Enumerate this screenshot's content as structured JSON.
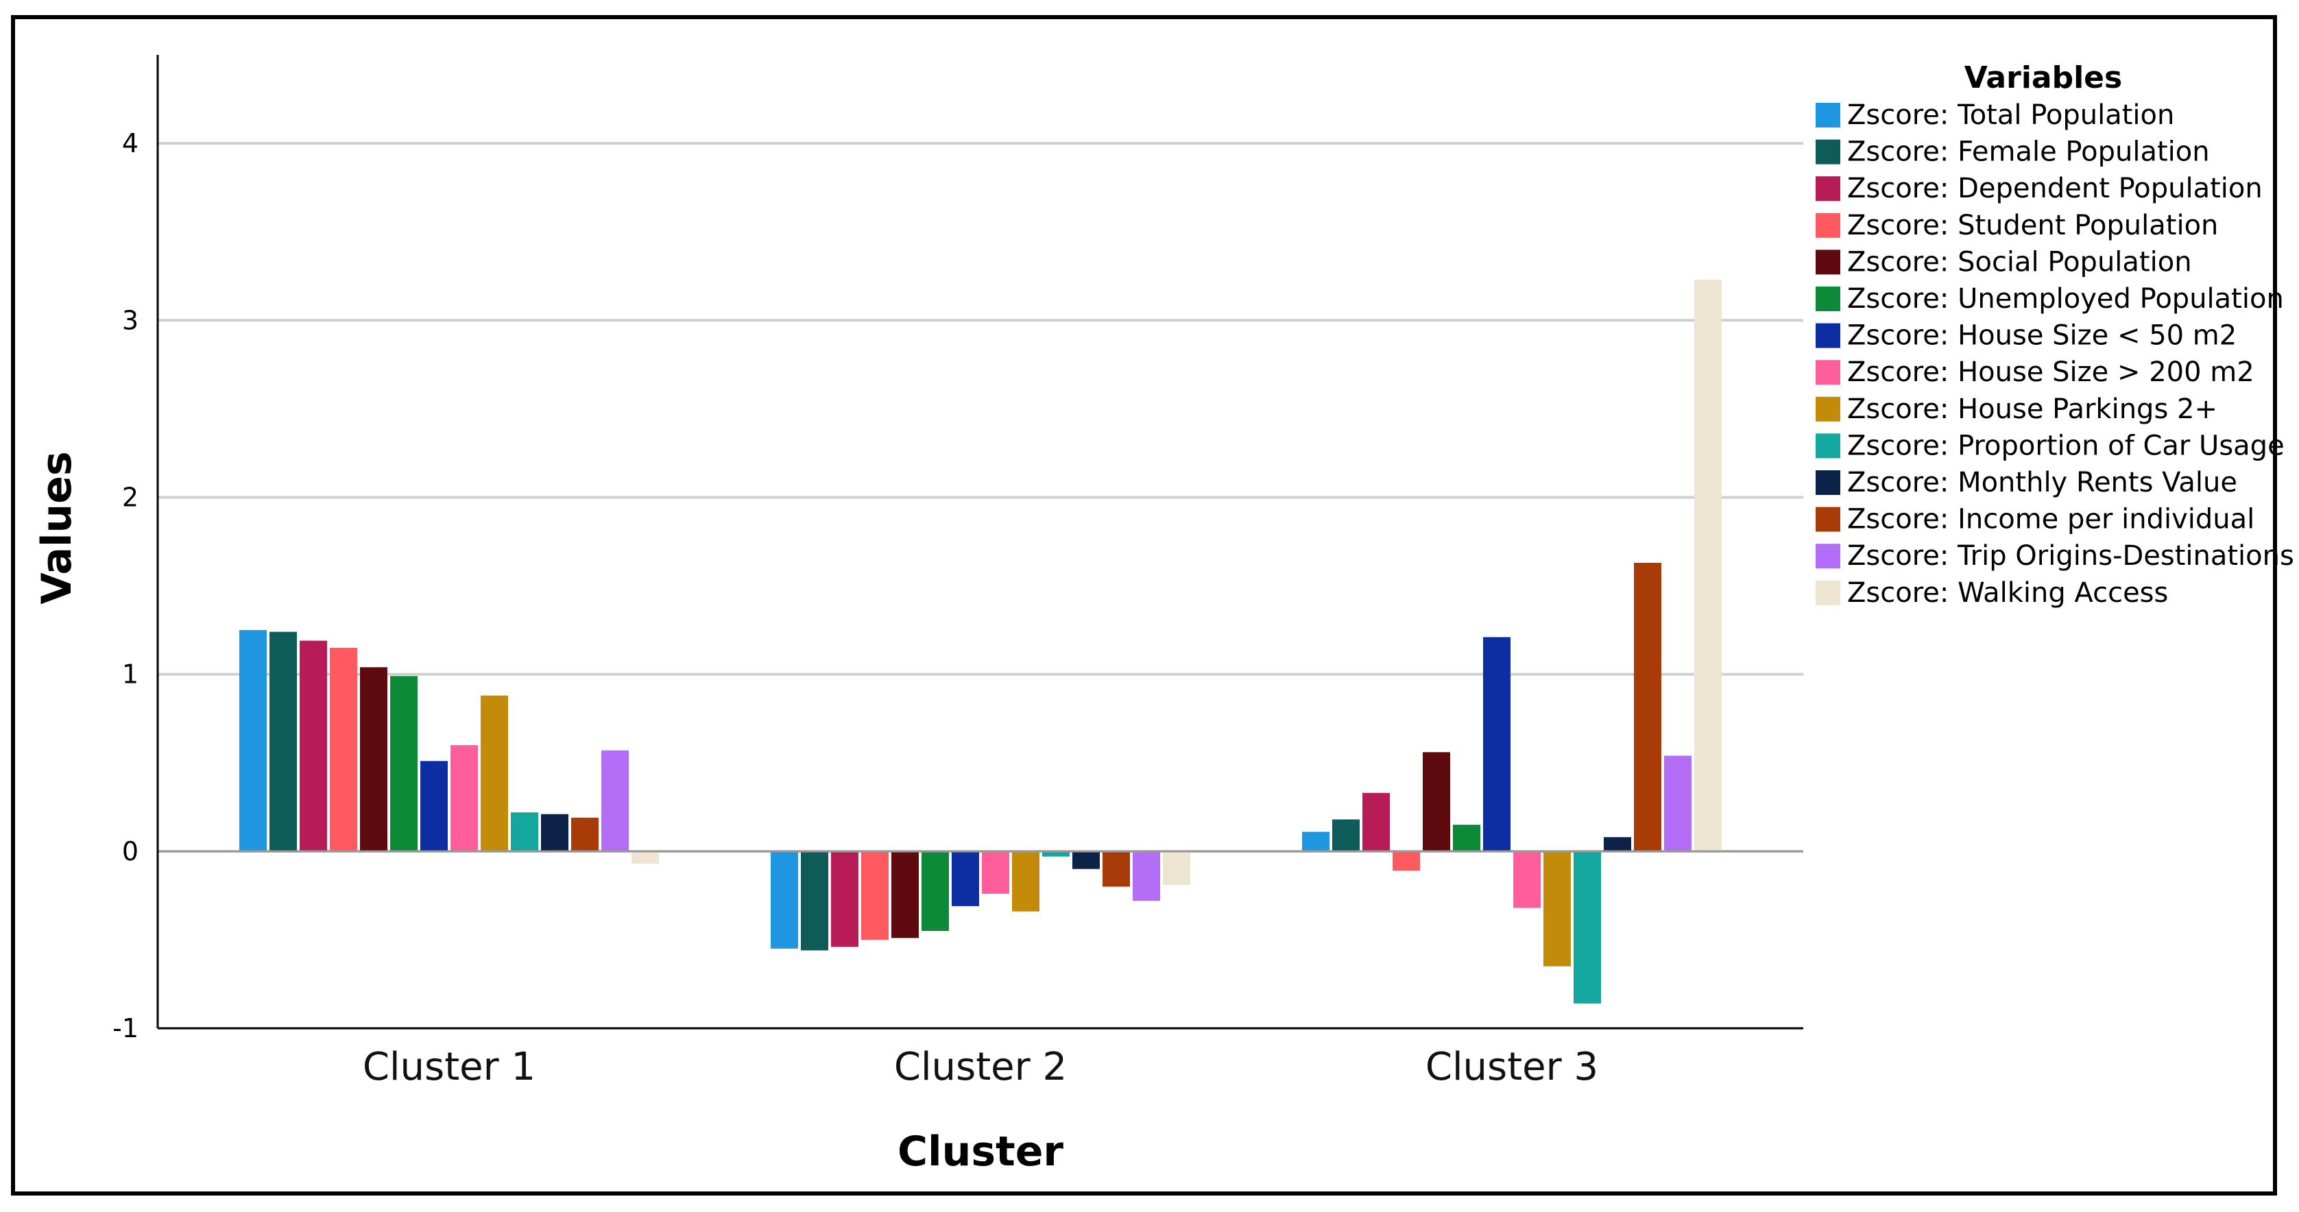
{
  "chart_data": {
    "type": "bar",
    "xlabel": "Cluster",
    "ylabel": "Values",
    "ylim": [
      -1,
      4.5
    ],
    "yticks": [
      -1,
      0,
      1,
      2,
      3,
      4
    ],
    "grid": "horizontal",
    "legend_title": "Variables",
    "legend_position": "right",
    "categories": [
      "Cluster 1",
      "Cluster 2",
      "Cluster 3"
    ],
    "series": [
      {
        "name": "Zscore:  Total Population",
        "color": "#1f97e0",
        "values": [
          1.25,
          -0.55,
          0.11
        ]
      },
      {
        "name": "Zscore:  Female Population",
        "color": "#0e5c5a",
        "values": [
          1.24,
          -0.56,
          0.18
        ]
      },
      {
        "name": "Zscore:  Dependent Population",
        "color": "#b71c57",
        "values": [
          1.19,
          -0.54,
          0.33
        ]
      },
      {
        "name": "Zscore:  Student Population",
        "color": "#ff5a5f",
        "values": [
          1.15,
          -0.5,
          -0.11
        ]
      },
      {
        "name": "Zscore:  Social Population",
        "color": "#5e0a0e",
        "values": [
          1.04,
          -0.49,
          0.56
        ]
      },
      {
        "name": "Zscore:  Unemployed Population",
        "color": "#0d8a38",
        "values": [
          0.99,
          -0.45,
          0.15
        ]
      },
      {
        "name": "Zscore:  House Size < 50 m2",
        "color": "#0d2ea2",
        "values": [
          0.51,
          -0.31,
          1.21
        ]
      },
      {
        "name": "Zscore:  House Size > 200 m2",
        "color": "#ff5e9b",
        "values": [
          0.6,
          -0.24,
          -0.32
        ]
      },
      {
        "name": "Zscore:  House Parkings 2+",
        "color": "#c28c0a",
        "values": [
          0.88,
          -0.34,
          -0.65
        ]
      },
      {
        "name": "Zscore:  Proportion of Car Usage",
        "color": "#14a7a0",
        "values": [
          0.22,
          -0.03,
          -0.86
        ]
      },
      {
        "name": "Zscore:  Monthly Rents Value",
        "color": "#0c2248",
        "values": [
          0.21,
          -0.1,
          0.08
        ]
      },
      {
        "name": "Zscore:  Income per individual",
        "color": "#a83b07",
        "values": [
          0.19,
          -0.2,
          1.63
        ]
      },
      {
        "name": "Zscore:  Trip Origins-Destinations",
        "color": "#b46df7",
        "values": [
          0.57,
          -0.28,
          0.54
        ]
      },
      {
        "name": "Zscore:  Walking Access",
        "color": "#ede5d1",
        "values": [
          -0.07,
          -0.19,
          3.23
        ]
      }
    ]
  }
}
